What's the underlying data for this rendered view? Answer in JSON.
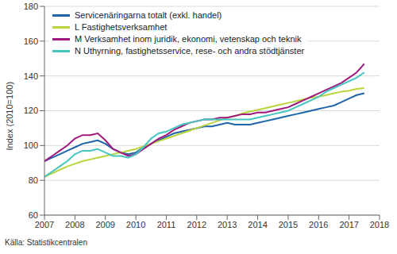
{
  "chart_data": {
    "type": "line",
    "y_label": "Index (2010=100)",
    "source": "Källa: Statistikcentralen",
    "x": [
      2007.0,
      2007.25,
      2007.5,
      2007.75,
      2008.0,
      2008.25,
      2008.5,
      2008.75,
      2009.0,
      2009.25,
      2009.5,
      2009.75,
      2010.0,
      2010.25,
      2010.5,
      2010.75,
      2011.0,
      2011.25,
      2011.5,
      2011.75,
      2012.0,
      2012.25,
      2012.5,
      2012.75,
      2013.0,
      2013.25,
      2013.5,
      2013.75,
      2014.0,
      2014.25,
      2014.5,
      2014.75,
      2015.0,
      2015.25,
      2015.5,
      2015.75,
      2016.0,
      2016.25,
      2016.5,
      2016.75,
      2017.0,
      2017.25,
      2017.5
    ],
    "series": [
      {
        "name": "Servicenäringarna totalt (exkl. handel)",
        "color": "#1d64a8",
        "values": [
          91,
          93,
          95,
          97,
          99,
          101,
          102,
          103,
          101,
          98,
          96,
          95,
          96,
          99,
          101,
          103,
          105,
          107,
          108,
          109,
          110,
          111,
          111,
          112,
          113,
          112,
          112,
          112,
          113,
          114,
          115,
          116,
          117,
          118,
          119,
          120,
          121,
          122,
          123,
          125,
          127,
          129,
          130
        ]
      },
      {
        "name": "L Fastighetsverksamhet",
        "color": "#b9d53c",
        "values": [
          82,
          84,
          86,
          88,
          89.5,
          91,
          92,
          93,
          94,
          95,
          96,
          97,
          98,
          99.5,
          101,
          102.5,
          104,
          105.5,
          107,
          108.5,
          110,
          111.5,
          113,
          114.5,
          116,
          117,
          118.5,
          119.5,
          120.5,
          121.5,
          122.5,
          123.5,
          124.5,
          125.5,
          126.5,
          127.5,
          128,
          129,
          130,
          131,
          131.5,
          132.5,
          133
        ]
      },
      {
        "name": "M Verksamhet inom juridik, ekonomi, vetenskap och teknik",
        "color": "#a0197f",
        "values": [
          91,
          94,
          97,
          100,
          104,
          106,
          106,
          107,
          103,
          98,
          96,
          94,
          95,
          98,
          101,
          104,
          106,
          109,
          111,
          113,
          114,
          115,
          115,
          116,
          116,
          117,
          118,
          118,
          119,
          119,
          120,
          121,
          122,
          124,
          126,
          128,
          130,
          132,
          134,
          136,
          139,
          142,
          147
        ]
      },
      {
        "name": "N Uthyrning, fastighetsservice, rese- och andra stödtjänster",
        "color": "#45c6c0",
        "values": [
          82,
          85,
          88,
          91,
          95,
          97,
          97,
          98,
          96,
          94,
          94,
          93,
          95,
          99,
          104,
          107,
          108,
          110,
          112,
          113,
          114,
          115,
          115,
          115,
          115,
          115,
          115,
          115,
          116,
          117,
          118,
          119,
          120,
          122,
          124,
          126,
          128,
          131,
          133,
          135,
          137,
          139,
          142
        ]
      }
    ],
    "xlim": [
      2007,
      2018
    ],
    "xticks": [
      2007,
      2008,
      2009,
      2010,
      2011,
      2012,
      2013,
      2014,
      2015,
      2016,
      2017,
      2018
    ],
    "ylim": [
      60,
      180
    ],
    "yticks": [
      60,
      80,
      100,
      120,
      140,
      160,
      180
    ],
    "grid": true,
    "legend": "upper left"
  }
}
